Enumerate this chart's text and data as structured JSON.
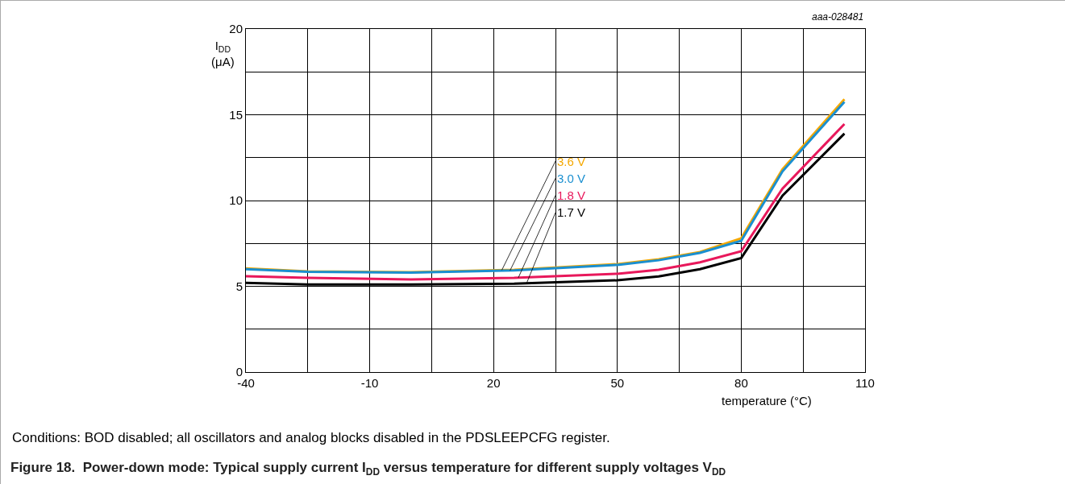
{
  "chart_data": {
    "type": "line",
    "title": "Figure 18.  Power-down mode: Typical supply current I$_{DD}$ versus temperature for different supply voltages V$_{DD}$",
    "xlabel": "temperature (°C)",
    "ylabel": "I$_{DD}$ (μA)",
    "x": [
      -40,
      -25,
      0,
      25,
      50,
      60,
      70,
      80,
      90,
      105
    ],
    "series": [
      {
        "name": "3.6 V",
        "color": "#f5a800",
        "values": [
          6.05,
          5.87,
          5.82,
          5.96,
          6.29,
          6.57,
          7.0,
          7.8,
          11.83,
          15.9
        ]
      },
      {
        "name": "3.0 V",
        "color": "#1a8fd0",
        "values": [
          6.0,
          5.85,
          5.8,
          5.93,
          6.25,
          6.52,
          6.95,
          7.65,
          11.7,
          15.75
        ]
      },
      {
        "name": "1.8 V",
        "color": "#e8185b",
        "values": [
          5.59,
          5.49,
          5.4,
          5.49,
          5.73,
          5.96,
          6.4,
          7.04,
          10.7,
          14.46
        ]
      },
      {
        "name": "1.7 V",
        "color": "#000000",
        "values": [
          5.2,
          5.1,
          5.1,
          5.15,
          5.35,
          5.58,
          6.0,
          6.65,
          10.28,
          13.9
        ]
      }
    ],
    "xlim": [
      -40,
      110
    ],
    "xticks": [
      -40,
      {
        "value": -25,
        "label": null
      },
      -10,
      {
        "value": 5,
        "label": null
      },
      20,
      {
        "value": 35,
        "label": null
      },
      50,
      {
        "value": 65,
        "label": null
      },
      80,
      {
        "value": 95,
        "label": null
      },
      110
    ],
    "ylim": [
      0,
      20
    ],
    "yticks": [
      0,
      {
        "value": 2.5,
        "label": null
      },
      5,
      {
        "value": 7.5,
        "label": null
      },
      10,
      {
        "value": 12.5,
        "label": null
      },
      15,
      {
        "value": 17.5,
        "label": null
      },
      20
    ],
    "grid": true,
    "legend": false,
    "marker": "none",
    "line_style": "solid",
    "annotations": [
      "aaa-028481",
      "Conditions: BOD disabled; all oscillators and analog blocks disabled in the PDSLEEPCFG register."
    ]
  }
}
